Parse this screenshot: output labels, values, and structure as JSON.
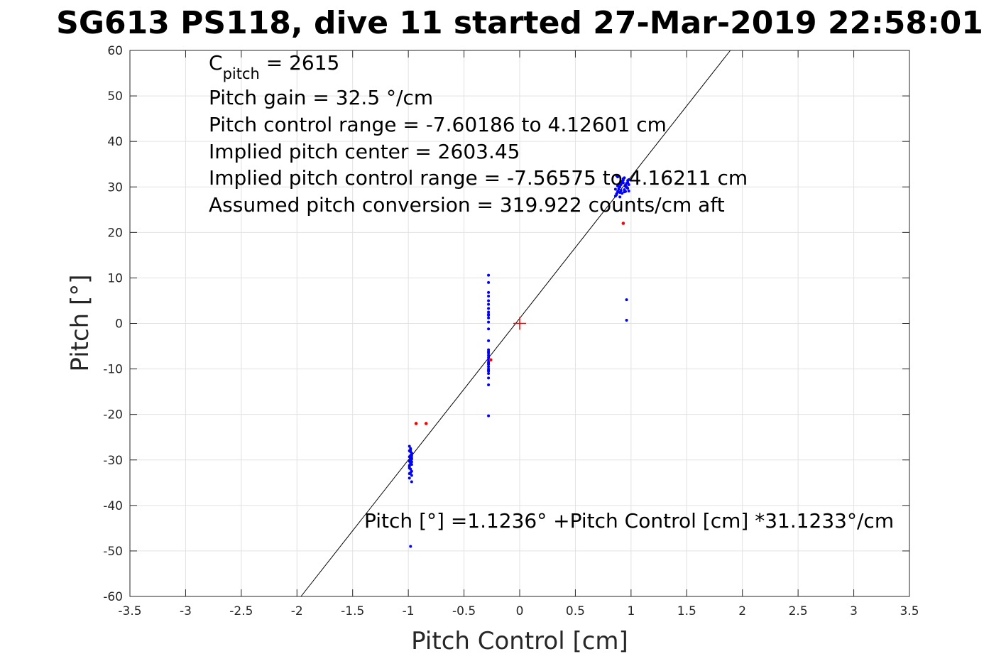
{
  "chart_data": {
    "type": "scatter",
    "title": "SG613 PS118, dive 11 started 27-Mar-2019 22:58:01",
    "xlabel": "Pitch Control [cm]",
    "ylabel": "Pitch [°]",
    "xlim": [
      -3.5,
      3.5
    ],
    "ylim": [
      -60,
      60
    ],
    "xticks": [
      -3.5,
      -3,
      -2.5,
      -2,
      -1.5,
      -1,
      -0.5,
      0,
      0.5,
      1,
      1.5,
      2,
      2.5,
      3,
      3.5
    ],
    "xtick_labels": [
      "-3.5",
      "-3",
      "-2.5",
      "-2",
      "-1.5",
      "-1",
      "-0.5",
      "0",
      "0.5",
      "1",
      "1.5",
      "2",
      "2.5",
      "3",
      "3.5"
    ],
    "yticks": [
      -60,
      -50,
      -40,
      -30,
      -20,
      -10,
      0,
      10,
      20,
      30,
      40,
      50,
      60
    ],
    "ytick_labels": [
      "-60",
      "-50",
      "-40",
      "-30",
      "-20",
      "-10",
      "0",
      "10",
      "20",
      "30",
      "40",
      "50",
      "60"
    ],
    "grid": true,
    "annotations": {
      "c_pitch_main": "C",
      "c_pitch_sub": "pitch",
      "c_pitch_value": " = 2615",
      "pitch_gain": "Pitch gain = 32.5 °/cm",
      "pitch_control_range": "Pitch control range = -7.60186 to 4.12601 cm",
      "implied_center": "Implied pitch center = 2603.45",
      "implied_range": "Implied pitch control range = -7.56575 to 4.16211 cm",
      "assumed_conversion": "Assumed pitch conversion = 319.922 counts/cm aft",
      "fit_equation": "Pitch [°] =1.1236° +Pitch Control [cm] *31.1233°/cm"
    },
    "fit_line": {
      "intercept": 1.1236,
      "slope": 31.1233
    },
    "center_marker": {
      "x": 0,
      "y": 0
    },
    "series": [
      {
        "color": "#0000ff",
        "x": [
          -0.99,
          -0.98,
          -0.99,
          -0.97,
          -0.98,
          -0.99,
          -0.97,
          -0.98,
          -0.99,
          -0.98,
          -0.97,
          -0.99,
          -0.98,
          -0.97,
          -0.99,
          -0.98,
          -0.97,
          -0.98,
          -0.99,
          -0.97,
          -0.98,
          -0.99,
          -0.98,
          -0.97,
          -0.98,
          -0.99,
          -0.97,
          -0.98,
          -0.97,
          -0.98,
          -0.97,
          -0.28,
          -0.28,
          -0.28,
          -0.28,
          -0.28,
          -0.28,
          -0.28,
          -0.28,
          -0.28,
          -0.28,
          -0.28,
          -0.28,
          -0.28,
          -0.28,
          -0.28,
          -0.28,
          -0.28,
          -0.28,
          -0.28,
          -0.28,
          -0.28,
          -0.28,
          -0.28,
          -0.28,
          -0.28,
          -0.28,
          -0.28,
          -0.28,
          -0.28,
          -0.28,
          -0.28,
          0.86,
          0.87,
          0.88,
          0.89,
          0.9,
          0.91,
          0.92,
          0.93,
          0.94,
          0.95,
          0.96,
          0.97,
          0.98,
          0.86,
          0.88,
          0.9,
          0.92,
          0.94,
          0.96,
          0.98,
          0.87,
          0.89,
          0.91,
          0.93,
          0.95,
          0.97,
          0.87,
          0.9,
          0.93,
          0.96,
          0.88,
          0.92,
          0.97,
          0.91,
          0.95,
          0.98,
          0.89,
          0.94,
          0.96,
          0.96
        ],
        "y": [
          -27,
          -27.5,
          -28,
          -28.5,
          -29,
          -29.3,
          -29.6,
          -30,
          -30.3,
          -30.6,
          -31,
          -31.5,
          -32,
          -32.5,
          -33,
          -28.2,
          -29.8,
          -30.8,
          -31.2,
          -28.8,
          -32.8,
          -34,
          -27.8,
          -29.1,
          -30.1,
          -31.8,
          -30.4,
          -29.5,
          -34.8,
          -49,
          -33.4,
          10.6,
          9.0,
          6.8,
          6.0,
          5.0,
          4.2,
          3.3,
          2.5,
          1.8,
          1.2,
          0.3,
          -1.2,
          -3.8,
          -5.8,
          -6.5,
          -7.0,
          -7.5,
          -8.0,
          -8.5,
          -9.0,
          -9.5,
          -10.0,
          -10.5,
          -11.0,
          -12.0,
          -13.5,
          -20.3,
          -6.2,
          -8.8,
          -10.3,
          2.0,
          28,
          28.5,
          29,
          29.5,
          30,
          30.5,
          31,
          31.5,
          32,
          29,
          30,
          31,
          30.5,
          29.5,
          30.2,
          28.8,
          31.2,
          29.4,
          30.8,
          31.6,
          28.3,
          30.6,
          29.2,
          31.8,
          30.1,
          29.7,
          32.5,
          27.8,
          30.9,
          29.9,
          32.2,
          28.6,
          31.4,
          31.1,
          30.4,
          29.1,
          29.6,
          28.9,
          5.2,
          0.7
        ]
      },
      {
        "color": "#ff0000",
        "x": [
          -0.93,
          -0.84,
          -0.26,
          0.93
        ],
        "y": [
          -22,
          -22,
          -8,
          22
        ]
      }
    ]
  }
}
